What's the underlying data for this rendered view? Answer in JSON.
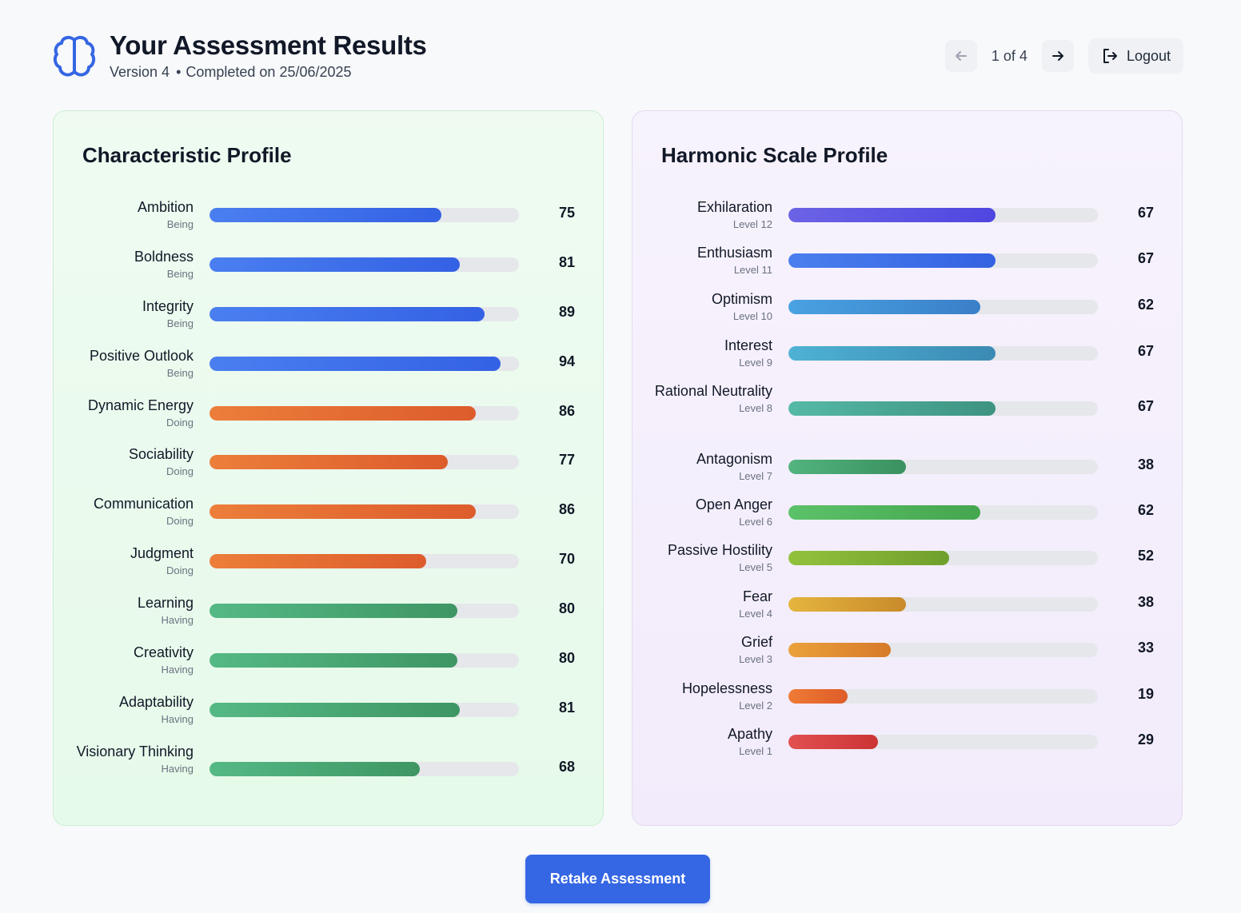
{
  "header": {
    "title": "Your Assessment Results",
    "version": "Version 4",
    "completed": "Completed on 25/06/2025",
    "pagination": "1 of 4",
    "logout_label": "Logout",
    "brand_color": "#3566e3"
  },
  "characteristic": {
    "title": "Characteristic Profile",
    "items": [
      {
        "name": "Ambition",
        "group": "Being",
        "value": 75
      },
      {
        "name": "Boldness",
        "group": "Being",
        "value": 81
      },
      {
        "name": "Integrity",
        "group": "Being",
        "value": 89
      },
      {
        "name": "Positive Outlook",
        "group": "Being",
        "value": 94
      },
      {
        "name": "Dynamic Energy",
        "group": "Doing",
        "value": 86
      },
      {
        "name": "Sociability",
        "group": "Doing",
        "value": 77
      },
      {
        "name": "Communication",
        "group": "Doing",
        "value": 86
      },
      {
        "name": "Judgment",
        "group": "Doing",
        "value": 70
      },
      {
        "name": "Learning",
        "group": "Having",
        "value": 80
      },
      {
        "name": "Creativity",
        "group": "Having",
        "value": 80
      },
      {
        "name": "Adaptability",
        "group": "Having",
        "value": 81
      },
      {
        "name": "Visionary Thinking",
        "group": "Having",
        "value": 68
      }
    ],
    "group_colors": {
      "Being": [
        "#4a7ff0",
        "#3461e4"
      ],
      "Doing": [
        "#ec7e3a",
        "#dd5c2c"
      ],
      "Having": [
        "#55b985",
        "#3e9664"
      ]
    }
  },
  "harmonic": {
    "title": "Harmonic Scale Profile",
    "items": [
      {
        "name": "Exhilaration",
        "level": "Level 12",
        "value": 67,
        "colors": [
          "#6c63e6",
          "#4e46e0"
        ]
      },
      {
        "name": "Enthusiasm",
        "level": "Level 11",
        "value": 67,
        "colors": [
          "#4b7fee",
          "#3462e2"
        ]
      },
      {
        "name": "Optimism",
        "level": "Level 10",
        "value": 62,
        "colors": [
          "#49a2e2",
          "#3a7fc9"
        ]
      },
      {
        "name": "Interest",
        "level": "Level 9",
        "value": 67,
        "colors": [
          "#4fb2d4",
          "#3b8ab4"
        ]
      },
      {
        "name": "Rational Neutrality",
        "level": "Level 8",
        "value": 67,
        "colors": [
          "#55b9a6",
          "#3e9380"
        ]
      },
      {
        "name": "Antagonism",
        "level": "Level 7",
        "value": 38,
        "colors": [
          "#52b47e",
          "#3a9160"
        ]
      },
      {
        "name": "Open Anger",
        "level": "Level 6",
        "value": 62,
        "colors": [
          "#5cc26a",
          "#44a64f"
        ]
      },
      {
        "name": "Passive Hostility",
        "level": "Level 5",
        "value": 52,
        "colors": [
          "#92c23c",
          "#6f9f2c"
        ]
      },
      {
        "name": "Fear",
        "level": "Level 4",
        "value": 38,
        "colors": [
          "#e4b53e",
          "#c98a2b"
        ]
      },
      {
        "name": "Grief",
        "level": "Level 3",
        "value": 33,
        "colors": [
          "#eba13a",
          "#d67a2a"
        ]
      },
      {
        "name": "Hopelessness",
        "level": "Level 2",
        "value": 19,
        "colors": [
          "#ef7b36",
          "#de5c28"
        ]
      },
      {
        "name": "Apathy",
        "level": "Level 1",
        "value": 29,
        "colors": [
          "#e25050",
          "#cc3434"
        ]
      }
    ]
  },
  "retake_label": "Retake Assessment"
}
